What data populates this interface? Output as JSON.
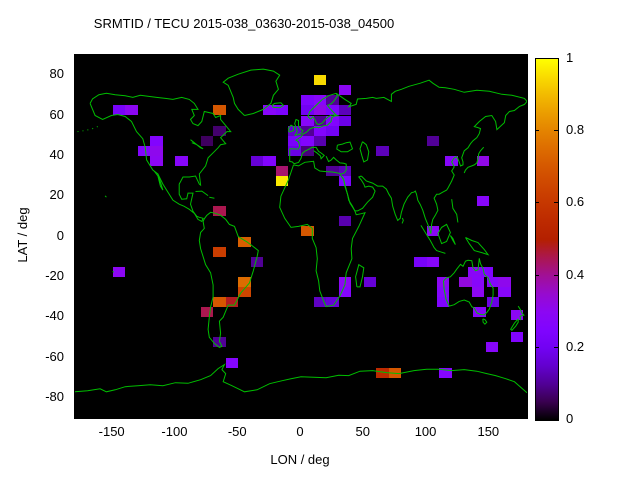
{
  "title": "SRMTID / TECU 2015-038_03630-2015-038_04500",
  "axes": {
    "x": {
      "label": "LON / deg",
      "range": [
        -180,
        180
      ],
      "ticks": [
        -150,
        -100,
        -50,
        0,
        50,
        100,
        150
      ]
    },
    "y": {
      "label": "LAT / deg",
      "range": [
        -90,
        90
      ],
      "ticks": [
        80,
        60,
        40,
        20,
        0,
        -20,
        -40,
        -60,
        -80
      ]
    }
  },
  "colorbar": {
    "range": [
      0,
      1
    ],
    "tick_values": [
      1,
      0.8,
      0.6,
      0.4,
      0.2,
      0
    ],
    "tick_labels": [
      "1",
      "0.8",
      "0.6",
      "0.4",
      "0.2",
      "0"
    ],
    "palette": "gnuplot rgbformulae 7,5,15 (black-violet-red-orange-yellow)"
  },
  "colors": {
    "plot_background": "#000000",
    "page_background": "#ffffff",
    "coastline": "#00be00",
    "text": "#000000"
  },
  "chart_data": {
    "type": "heatmap",
    "title": "SRMTID / TECU 2015-038_03630-2015-038_04500",
    "xlabel": "LON / deg",
    "ylabel": "LAT / deg",
    "xlim": [
      -180,
      180
    ],
    "ylim": [
      -90,
      90
    ],
    "value_range": [
      0,
      1
    ],
    "cell_size_deg": {
      "lon": 10,
      "lat": 5
    },
    "legend_position": "right-colorbar",
    "grid": false,
    "cells": [
      {
        "lon": -145,
        "lat": 62.5,
        "v": 0.22
      },
      {
        "lon": -135,
        "lat": 62.5,
        "v": 0.3
      },
      {
        "lon": -65,
        "lat": 62.5,
        "v": 0.7
      },
      {
        "lon": -25,
        "lat": 62.5,
        "v": 0.28
      },
      {
        "lon": -15,
        "lat": 62.5,
        "v": 0.24
      },
      {
        "lon": -65,
        "lat": 52.5,
        "v": 0.07
      },
      {
        "lon": -75,
        "lat": 47.5,
        "v": 0.06
      },
      {
        "lon": -125,
        "lat": 42.5,
        "v": 0.26
      },
      {
        "lon": -115,
        "lat": 47.5,
        "v": 0.26
      },
      {
        "lon": -115,
        "lat": 42.5,
        "v": 0.31
      },
      {
        "lon": -115,
        "lat": 37.5,
        "v": 0.3
      },
      {
        "lon": -95,
        "lat": 37.5,
        "v": 0.28
      },
      {
        "lon": -35,
        "lat": 37.5,
        "v": 0.16
      },
      {
        "lon": -25,
        "lat": 37.5,
        "v": 0.26
      },
      {
        "lon": -15,
        "lat": 32.5,
        "v": 0.43
      },
      {
        "lon": -15,
        "lat": 27.5,
        "v": 0.97
      },
      {
        "lon": -65,
        "lat": 12.5,
        "v": 0.45
      },
      {
        "lon": 15,
        "lat": 77.5,
        "v": 0.95
      },
      {
        "lon": 35,
        "lat": 72.5,
        "v": 0.3
      },
      {
        "lon": 5,
        "lat": 67.5,
        "v": 0.24
      },
      {
        "lon": 15,
        "lat": 67.5,
        "v": 0.28
      },
      {
        "lon": 25,
        "lat": 67.5,
        "v": 0.1
      },
      {
        "lon": 5,
        "lat": 62.5,
        "v": 0.2
      },
      {
        "lon": 15,
        "lat": 62.5,
        "v": 0.32
      },
      {
        "lon": 25,
        "lat": 62.5,
        "v": 0.24
      },
      {
        "lon": 35,
        "lat": 62.5,
        "v": 0.13
      },
      {
        "lon": 5,
        "lat": 57.5,
        "v": 0.28
      },
      {
        "lon": 15,
        "lat": 57.5,
        "v": 0.1
      },
      {
        "lon": 25,
        "lat": 57.5,
        "v": 0.26
      },
      {
        "lon": 35,
        "lat": 57.5,
        "v": 0.18
      },
      {
        "lon": -5,
        "lat": 52.5,
        "v": 0.15
      },
      {
        "lon": 5,
        "lat": 52.5,
        "v": 0.1
      },
      {
        "lon": 15,
        "lat": 52.5,
        "v": 0.26
      },
      {
        "lon": 25,
        "lat": 52.5,
        "v": 0.2
      },
      {
        "lon": -5,
        "lat": 47.5,
        "v": 0.22
      },
      {
        "lon": 5,
        "lat": 47.5,
        "v": 0.26
      },
      {
        "lon": 15,
        "lat": 47.5,
        "v": 0.12
      },
      {
        "lon": -5,
        "lat": 42.5,
        "v": 0.18
      },
      {
        "lon": 5,
        "lat": 42.5,
        "v": 0.08
      },
      {
        "lon": 25,
        "lat": 32.5,
        "v": 0.1
      },
      {
        "lon": 35,
        "lat": 32.5,
        "v": 0.13
      },
      {
        "lon": 35,
        "lat": 27.5,
        "v": 0.24
      },
      {
        "lon": 5,
        "lat": 2.5,
        "v": 0.7
      },
      {
        "lon": 35,
        "lat": 7.5,
        "v": 0.12
      },
      {
        "lon": 65,
        "lat": 42.5,
        "v": 0.13
      },
      {
        "lon": 105,
        "lat": 47.5,
        "v": 0.1
      },
      {
        "lon": 120,
        "lat": 37.5,
        "v": 0.28
      },
      {
        "lon": 145,
        "lat": 37.5,
        "v": 0.32
      },
      {
        "lon": 145,
        "lat": 17.5,
        "v": 0.28
      },
      {
        "lon": 105,
        "lat": 2.5,
        "v": 0.3
      },
      {
        "lon": 95,
        "lat": -12.5,
        "v": 0.22
      },
      {
        "lon": 105,
        "lat": -12.5,
        "v": 0.28
      },
      {
        "lon": 55,
        "lat": -22.5,
        "v": 0.16
      },
      {
        "lon": 35,
        "lat": -22.5,
        "v": 0.3
      },
      {
        "lon": 35,
        "lat": -27.5,
        "v": 0.27
      },
      {
        "lon": 15,
        "lat": -32.5,
        "v": 0.14
      },
      {
        "lon": 25,
        "lat": -32.5,
        "v": 0.16
      },
      {
        "lon": 113,
        "lat": -22.5,
        "v": 0.3
      },
      {
        "lon": 113,
        "lat": -27.5,
        "v": 0.27
      },
      {
        "lon": 113,
        "lat": -32.5,
        "v": 0.25
      },
      {
        "lon": 138,
        "lat": -17.5,
        "v": 0.29
      },
      {
        "lon": 148,
        "lat": -17.5,
        "v": 0.25
      },
      {
        "lon": 131,
        "lat": -22.5,
        "v": 0.33
      },
      {
        "lon": 141,
        "lat": -22.5,
        "v": 0.28
      },
      {
        "lon": 141,
        "lat": -27.5,
        "v": 0.3
      },
      {
        "lon": 153,
        "lat": -22.5,
        "v": 0.27
      },
      {
        "lon": 162,
        "lat": -22.5,
        "v": 0.31
      },
      {
        "lon": 162,
        "lat": -27.5,
        "v": 0.28
      },
      {
        "lon": 153,
        "lat": -32.5,
        "v": 0.18
      },
      {
        "lon": 142,
        "lat": -37.5,
        "v": 0.28
      },
      {
        "lon": 172,
        "lat": -39,
        "v": 0.3
      },
      {
        "lon": 172,
        "lat": -50,
        "v": 0.26
      },
      {
        "lon": 152,
        "lat": -55,
        "v": 0.28
      },
      {
        "lon": -45,
        "lat": -2.5,
        "v": 0.72
      },
      {
        "lon": -65,
        "lat": -7.5,
        "v": 0.62
      },
      {
        "lon": -35,
        "lat": -12.5,
        "v": 0.1
      },
      {
        "lon": -145,
        "lat": -17.5,
        "v": 0.3
      },
      {
        "lon": -45,
        "lat": -22.5,
        "v": 0.75
      },
      {
        "lon": -45,
        "lat": -27.5,
        "v": 0.65
      },
      {
        "lon": -65,
        "lat": -32.5,
        "v": 0.7
      },
      {
        "lon": -55,
        "lat": -32.5,
        "v": 0.48
      },
      {
        "lon": -75,
        "lat": -37.5,
        "v": 0.45
      },
      {
        "lon": -65,
        "lat": -52.5,
        "v": 0.1
      },
      {
        "lon": -55,
        "lat": -62.5,
        "v": 0.27
      },
      {
        "lon": 65,
        "lat": -67.5,
        "v": 0.55
      },
      {
        "lon": 75,
        "lat": -67.5,
        "v": 0.7
      },
      {
        "lon": 115,
        "lat": -67.5,
        "v": 0.27
      }
    ]
  }
}
